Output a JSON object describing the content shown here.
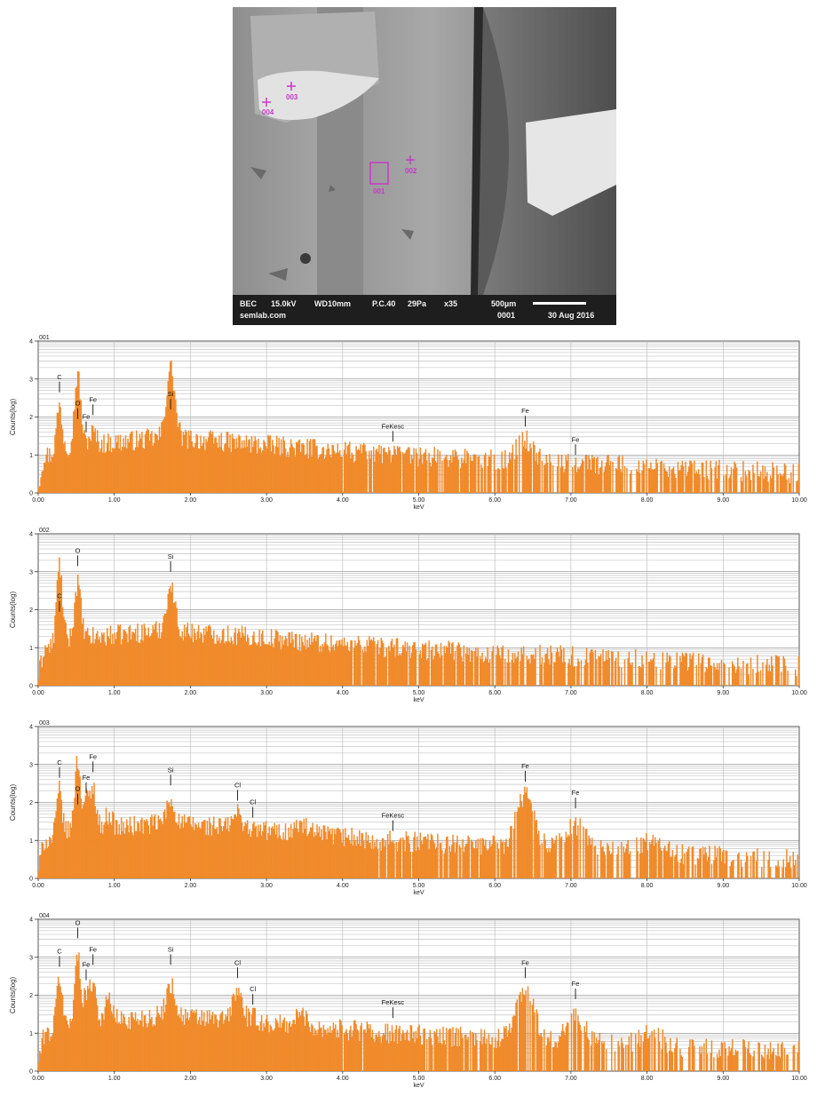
{
  "micrograph": {
    "info": {
      "mode": "BEC",
      "voltage": "15.0kV",
      "wd": "WD10mm",
      "pc": "P.C.40",
      "pressure": "29Pa",
      "mag": "x35",
      "scale": "500µm",
      "site": "semlab.com",
      "image_no": "0001",
      "date": "30 Aug 2016"
    },
    "markers": [
      {
        "label": "001"
      },
      {
        "label": "002"
      },
      {
        "label": "003"
      },
      {
        "label": "004"
      }
    ],
    "marker_color": "#c838c8"
  },
  "chart_data": [
    {
      "type": "area",
      "title": "001",
      "xlabel": "keV",
      "ylabel": "Counts(log)",
      "xlim": [
        0,
        10
      ],
      "ylim": [
        0,
        4
      ],
      "xticks": [
        "0.00",
        "1.00",
        "2.00",
        "3.00",
        "4.00",
        "5.00",
        "6.00",
        "7.00",
        "8.00",
        "9.00",
        "10.00"
      ],
      "yticks": [
        "0",
        "1",
        "2",
        "3",
        "4"
      ],
      "color": "#f08a2a",
      "peaks": [
        {
          "keV": 0.28,
          "height": 2.3
        },
        {
          "keV": 0.52,
          "height": 3.1
        },
        {
          "keV": 0.63,
          "height": 1.3
        },
        {
          "keV": 0.72,
          "height": 1.6
        },
        {
          "keV": 1.74,
          "height": 3.3
        },
        {
          "keV": 6.4,
          "height": 1.4
        },
        {
          "keV": 7.06,
          "height": 0.8
        }
      ],
      "annotations": [
        {
          "text": "C",
          "keV": 0.28,
          "y": 3.0
        },
        {
          "text": "O",
          "keV": 0.52,
          "y": 2.3
        },
        {
          "text": "Fe",
          "keV": 0.63,
          "y": 1.95
        },
        {
          "text": "Fe",
          "keV": 0.72,
          "y": 2.4
        },
        {
          "text": "Si",
          "keV": 1.74,
          "y": 2.55
        },
        {
          "text": "FeKesc",
          "keV": 4.66,
          "y": 1.7
        },
        {
          "text": "Fe",
          "keV": 6.4,
          "y": 2.1
        },
        {
          "text": "Fe",
          "keV": 7.06,
          "y": 1.35
        }
      ]
    },
    {
      "type": "area",
      "title": "002",
      "xlabel": "keV",
      "ylabel": "Counts(log)",
      "xlim": [
        0,
        10
      ],
      "ylim": [
        0,
        4
      ],
      "xticks": [
        "0.00",
        "1.00",
        "2.00",
        "3.00",
        "4.00",
        "5.00",
        "6.00",
        "7.00",
        "8.00",
        "9.00",
        "10.00"
      ],
      "yticks": [
        "0",
        "1",
        "2",
        "3",
        "4"
      ],
      "color": "#f08a2a",
      "peaks": [
        {
          "keV": 0.28,
          "height": 3.2
        },
        {
          "keV": 0.52,
          "height": 2.7
        },
        {
          "keV": 1.74,
          "height": 2.6
        },
        {
          "keV": 6.4,
          "height": 0.8
        }
      ],
      "annotations": [
        {
          "text": "C",
          "keV": 0.28,
          "y": 2.3
        },
        {
          "text": "O",
          "keV": 0.52,
          "y": 3.5
        },
        {
          "text": "Si",
          "keV": 1.74,
          "y": 3.35
        }
      ]
    },
    {
      "type": "area",
      "title": "003",
      "xlabel": "keV",
      "ylabel": "Counts(log)",
      "xlim": [
        0,
        10
      ],
      "ylim": [
        0,
        4
      ],
      "xticks": [
        "0.00",
        "1.00",
        "2.00",
        "3.00",
        "4.00",
        "5.00",
        "6.00",
        "7.00",
        "8.00",
        "9.00",
        "10.00"
      ],
      "yticks": [
        "0",
        "1",
        "2",
        "3",
        "4"
      ],
      "color": "#f08a2a",
      "peaks": [
        {
          "keV": 0.28,
          "height": 2.3
        },
        {
          "keV": 0.52,
          "height": 3.1
        },
        {
          "keV": 0.63,
          "height": 2.1
        },
        {
          "keV": 0.72,
          "height": 2.4
        },
        {
          "keV": 0.93,
          "height": 1.7
        },
        {
          "keV": 1.74,
          "height": 2.0
        },
        {
          "keV": 2.62,
          "height": 1.7
        },
        {
          "keV": 2.82,
          "height": 1.1
        },
        {
          "keV": 3.45,
          "height": 1.4
        },
        {
          "keV": 6.4,
          "height": 2.2
        },
        {
          "keV": 7.06,
          "height": 1.4
        },
        {
          "keV": 8.05,
          "height": 1.0
        }
      ],
      "annotations": [
        {
          "text": "C",
          "keV": 0.28,
          "y": 3.0
        },
        {
          "text": "O",
          "keV": 0.52,
          "y": 2.3
        },
        {
          "text": "Fe",
          "keV": 0.63,
          "y": 2.6
        },
        {
          "text": "Fe",
          "keV": 0.72,
          "y": 3.15
        },
        {
          "text": "Si",
          "keV": 1.74,
          "y": 2.8
        },
        {
          "text": "Cl",
          "keV": 2.62,
          "y": 2.4
        },
        {
          "text": "Cl",
          "keV": 2.82,
          "y": 1.95
        },
        {
          "text": "FeKesc",
          "keV": 4.66,
          "y": 1.6
        },
        {
          "text": "Fe",
          "keV": 6.4,
          "y": 2.9
        },
        {
          "text": "Fe",
          "keV": 7.06,
          "y": 2.2
        }
      ]
    },
    {
      "type": "area",
      "title": "004",
      "xlabel": "keV",
      "ylabel": "Counts(log)",
      "xlim": [
        0,
        10
      ],
      "ylim": [
        0,
        4
      ],
      "xticks": [
        "0.00",
        "1.00",
        "2.00",
        "3.00",
        "4.00",
        "5.00",
        "6.00",
        "7.00",
        "8.00",
        "9.00",
        "10.00"
      ],
      "yticks": [
        "0",
        "1",
        "2",
        "3",
        "4"
      ],
      "color": "#f08a2a",
      "peaks": [
        {
          "keV": 0.28,
          "height": 2.5
        },
        {
          "keV": 0.52,
          "height": 3.0
        },
        {
          "keV": 0.63,
          "height": 2.1
        },
        {
          "keV": 0.72,
          "height": 2.4
        },
        {
          "keV": 0.93,
          "height": 1.9
        },
        {
          "keV": 1.74,
          "height": 2.3
        },
        {
          "keV": 2.62,
          "height": 2.1
        },
        {
          "keV": 2.82,
          "height": 1.4
        },
        {
          "keV": 3.45,
          "height": 1.5
        },
        {
          "keV": 6.4,
          "height": 2.2
        },
        {
          "keV": 7.06,
          "height": 1.4
        },
        {
          "keV": 8.05,
          "height": 1.0
        }
      ],
      "annotations": [
        {
          "text": "C",
          "keV": 0.28,
          "y": 3.1
        },
        {
          "text": "O",
          "keV": 0.52,
          "y": 3.85
        },
        {
          "text": "Fe",
          "keV": 0.63,
          "y": 2.75
        },
        {
          "text": "Fe",
          "keV": 0.72,
          "y": 3.15
        },
        {
          "text": "Si",
          "keV": 1.74,
          "y": 3.15
        },
        {
          "text": "Cl",
          "keV": 2.62,
          "y": 2.8
        },
        {
          "text": "Cl",
          "keV": 2.82,
          "y": 2.1
        },
        {
          "text": "FeKesc",
          "keV": 4.66,
          "y": 1.75
        },
        {
          "text": "Fe",
          "keV": 6.4,
          "y": 2.8
        },
        {
          "text": "Fe",
          "keV": 7.06,
          "y": 2.25
        }
      ]
    }
  ]
}
